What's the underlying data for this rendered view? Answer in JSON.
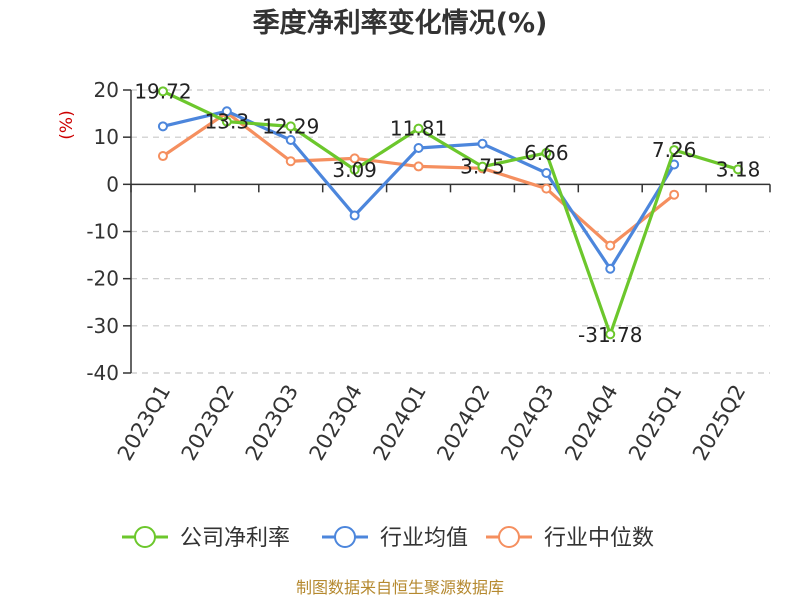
{
  "chart_data": {
    "type": "line",
    "title": "季度净利率变化情况(%)",
    "ylabel": "(%)",
    "ylim": [
      -40,
      20
    ],
    "yticks": [
      20,
      10,
      0,
      -10,
      -20,
      -30,
      -40
    ],
    "grid": true,
    "legend_position": "bottom",
    "categories": [
      "2023Q1",
      "2023Q2",
      "2023Q3",
      "2023Q4",
      "2024Q1",
      "2024Q2",
      "2024Q3",
      "2024Q4",
      "2025Q1",
      "2025Q2"
    ],
    "series": [
      {
        "name": "公司净利率",
        "color": "#6cc72c",
        "values": [
          19.72,
          13.3,
          12.29,
          3.09,
          11.81,
          3.75,
          6.66,
          -31.78,
          7.26,
          3.18
        ],
        "data_labels": [
          "19.72",
          "13.3",
          "12.29",
          "3.09",
          "11.81",
          "3.75",
          "6.66",
          "-31.78",
          "7.26",
          "3.18"
        ]
      },
      {
        "name": "行业均值",
        "color": "#4c86dc",
        "values": [
          12.3,
          15.5,
          9.4,
          -6.6,
          7.7,
          8.6,
          2.4,
          -17.9,
          4.2,
          null
        ]
      },
      {
        "name": "行业中位数",
        "color": "#f58f5f",
        "values": [
          6.0,
          15.2,
          4.9,
          5.5,
          3.8,
          3.4,
          -0.9,
          -13.0,
          -2.2,
          null
        ]
      }
    ]
  },
  "footer": "制图数据来自恒生聚源数据库"
}
